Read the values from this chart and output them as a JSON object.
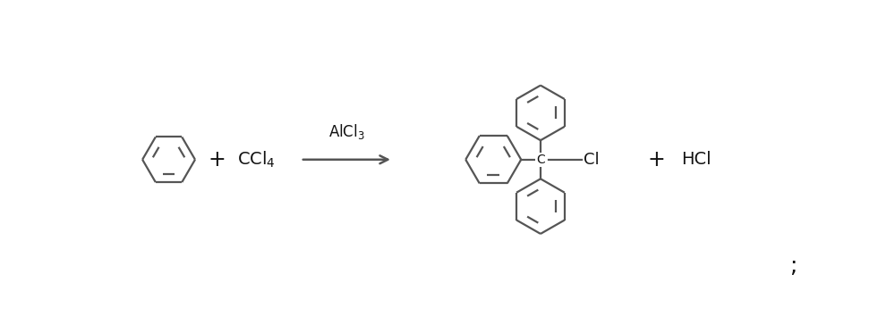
{
  "background_color": "#ffffff",
  "line_color": "#555555",
  "text_color": "#111111",
  "fig_width": 10.0,
  "fig_height": 3.54,
  "dpi": 100,
  "catalyst_label": "AlCl$_3$",
  "reactant1_label": "CCl$_4$",
  "plus1_label": "+",
  "plus2_label": "+",
  "product2_label": "HCl",
  "c_label": "C",
  "cl_label": "Cl",
  "semicolon": ";"
}
